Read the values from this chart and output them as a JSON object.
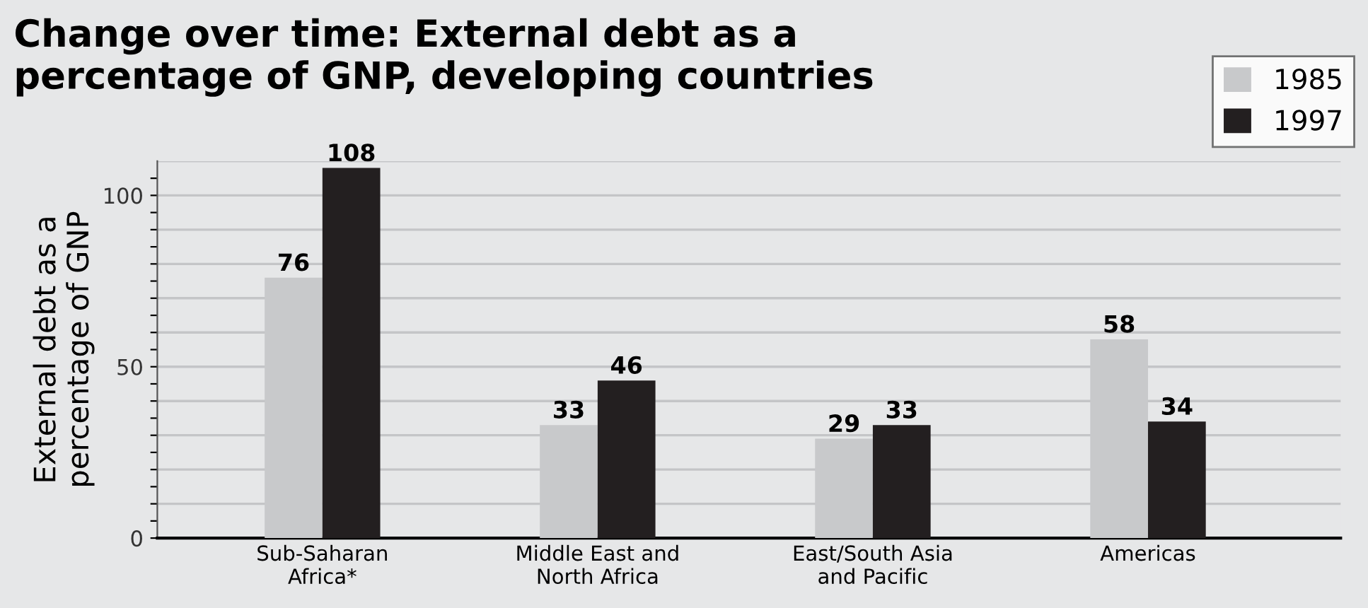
{
  "chart_data": {
    "type": "bar",
    "title": "Change over time: External debt as a\npercentage of GNP, developing countries",
    "ylabel": "External debt as a\npercentage of GNP",
    "categories": [
      "Sub-Saharan\nAfrica*",
      "Middle East and\nNorth Africa",
      "East/South Asia\nand Pacific",
      "Americas"
    ],
    "series": [
      {
        "name": "1985",
        "color": "#c8c9cb",
        "values": [
          76,
          33,
          29,
          58
        ]
      },
      {
        "name": "1997",
        "color": "#231f20",
        "values": [
          108,
          46,
          33,
          34
        ]
      }
    ],
    "ylim": [
      0,
      110
    ],
    "yticks": [
      0,
      {
        "value": 5,
        "label": null
      },
      {
        "value": 10,
        "label": null
      },
      {
        "value": 15,
        "label": null
      },
      {
        "value": 20,
        "label": null
      },
      {
        "value": 25,
        "label": null
      },
      {
        "value": 30,
        "label": null
      },
      {
        "value": 35,
        "label": null
      },
      {
        "value": 40,
        "label": null
      },
      {
        "value": 45,
        "label": null
      },
      50,
      {
        "value": 55,
        "label": null
      },
      {
        "value": 60,
        "label": null
      },
      {
        "value": 65,
        "label": null
      },
      {
        "value": 70,
        "label": null
      },
      {
        "value": 75,
        "label": null
      },
      {
        "value": 80,
        "label": null
      },
      {
        "value": 85,
        "label": null
      },
      {
        "value": 90,
        "label": null
      },
      {
        "value": 95,
        "label": null
      },
      100,
      {
        "value": 105,
        "label": null
      }
    ],
    "grid": "y",
    "legend": "top right",
    "data_labels": true
  }
}
